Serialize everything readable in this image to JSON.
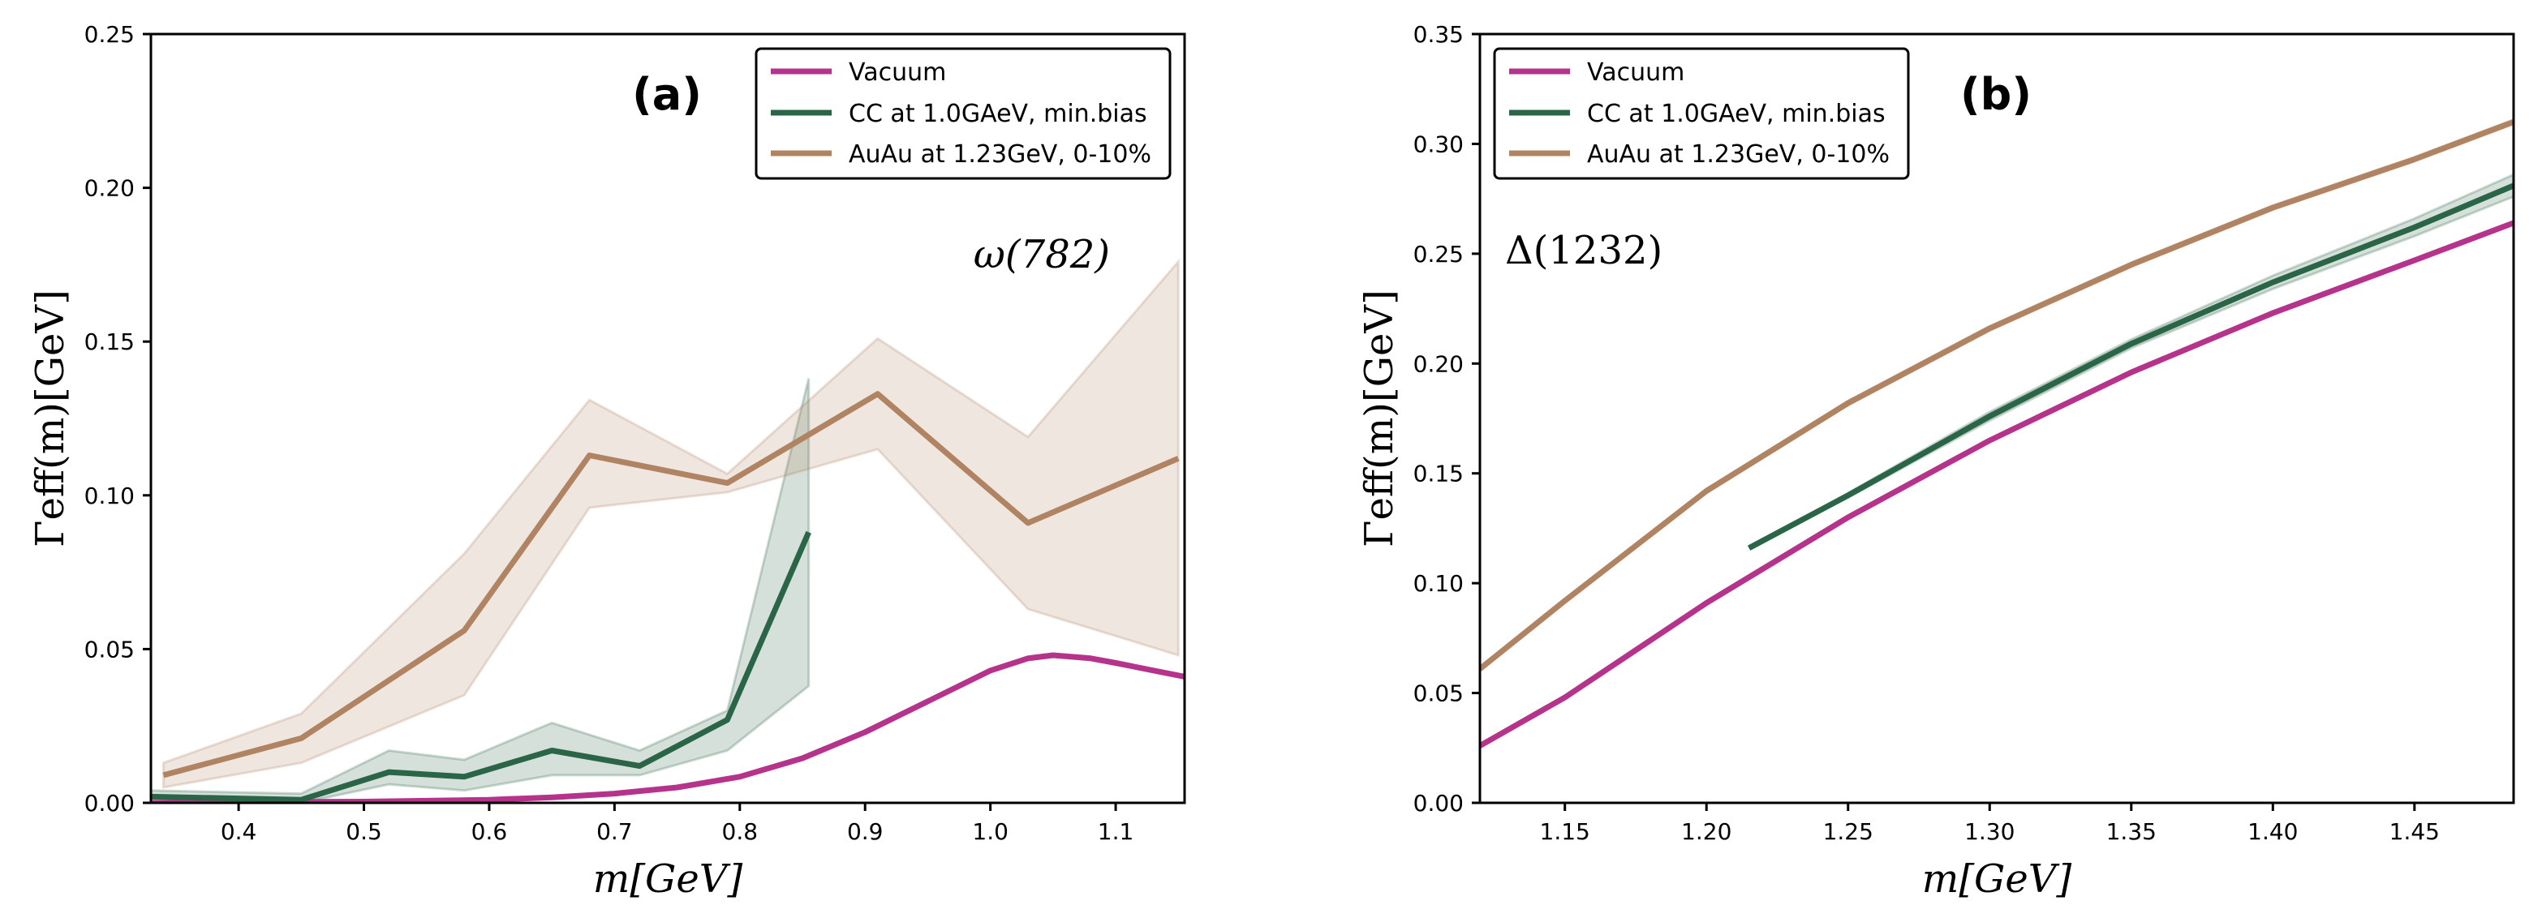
{
  "colors": {
    "vacuum": "#b5338a",
    "cc": "#2b6548",
    "auau": "#b08462"
  },
  "chart_data": [
    {
      "type": "line",
      "panel_label": "a",
      "annotation": "ω(782)",
      "xlabel": "m[GeV]",
      "ylabel": "Γeff(m)[GeV]",
      "xlim": [
        0.33,
        1.155
      ],
      "ylim": [
        0,
        0.25
      ],
      "xticks": [
        0.4,
        0.5,
        0.6,
        0.7,
        0.8,
        0.9,
        1.0,
        1.1
      ],
      "xtick_labels": [
        "0.4",
        "0.5",
        "0.6",
        "0.7",
        "0.8",
        "0.9",
        "1.0",
        "1.1"
      ],
      "yticks": [
        0.0,
        0.05,
        0.1,
        0.15,
        0.2,
        0.25
      ],
      "ytick_labels": [
        "0.00",
        "0.05",
        "0.10",
        "0.15",
        "0.20",
        "0.25"
      ],
      "legend_position": "top-right",
      "series": [
        {
          "name": "Vacuum",
          "color_key": "vacuum",
          "x": [
            0.33,
            0.4,
            0.5,
            0.6,
            0.65,
            0.7,
            0.75,
            0.8,
            0.85,
            0.9,
            0.95,
            1.0,
            1.03,
            1.05,
            1.08,
            1.1,
            1.155
          ],
          "y": [
            0.0,
            0.0002,
            0.0004,
            0.001,
            0.0018,
            0.003,
            0.005,
            0.0085,
            0.0145,
            0.023,
            0.033,
            0.043,
            0.047,
            0.048,
            0.047,
            0.0455,
            0.041
          ]
        },
        {
          "name": "CC at 1.0GAeV, min.bias",
          "color_key": "cc",
          "x": [
            0.33,
            0.45,
            0.52,
            0.58,
            0.65,
            0.72,
            0.79,
            0.855
          ],
          "y": [
            0.002,
            0.001,
            0.01,
            0.0085,
            0.017,
            0.012,
            0.027,
            0.088
          ],
          "band_low": [
            0.0,
            0.0,
            0.006,
            0.004,
            0.009,
            0.009,
            0.017,
            0.038
          ],
          "band_high": [
            0.004,
            0.003,
            0.017,
            0.014,
            0.026,
            0.017,
            0.03,
            0.138
          ]
        },
        {
          "name": "AuAu at 1.23GeV, 0-10%",
          "color_key": "auau",
          "x": [
            0.34,
            0.45,
            0.58,
            0.68,
            0.79,
            0.91,
            1.03,
            1.15
          ],
          "y": [
            0.009,
            0.021,
            0.056,
            0.113,
            0.104,
            0.133,
            0.091,
            0.112
          ],
          "band_low": [
            0.005,
            0.013,
            0.035,
            0.096,
            0.101,
            0.115,
            0.063,
            0.048
          ],
          "band_high": [
            0.013,
            0.029,
            0.081,
            0.131,
            0.107,
            0.151,
            0.119,
            0.176
          ]
        }
      ]
    },
    {
      "type": "line",
      "panel_label": "b",
      "annotation": "Δ(1232)",
      "xlabel": "m[GeV]",
      "ylabel": "Γeff(m)[GeV]",
      "xlim": [
        1.12,
        1.485
      ],
      "ylim": [
        0,
        0.35
      ],
      "xticks": [
        1.15,
        1.2,
        1.25,
        1.3,
        1.35,
        1.4,
        1.45
      ],
      "xtick_labels": [
        "1.15",
        "1.20",
        "1.25",
        "1.30",
        "1.35",
        "1.40",
        "1.45"
      ],
      "yticks": [
        0.0,
        0.05,
        0.1,
        0.15,
        0.2,
        0.25,
        0.3,
        0.35
      ],
      "ytick_labels": [
        "0.00",
        "0.05",
        "0.10",
        "0.15",
        "0.20",
        "0.25",
        "0.30",
        "0.35"
      ],
      "legend_position": "top-left",
      "series": [
        {
          "name": "Vacuum",
          "color_key": "vacuum",
          "x": [
            1.12,
            1.15,
            1.2,
            1.25,
            1.3,
            1.35,
            1.4,
            1.45,
            1.485
          ],
          "y": [
            0.026,
            0.048,
            0.091,
            0.13,
            0.165,
            0.196,
            0.223,
            0.247,
            0.264
          ]
        },
        {
          "name": "CC at 1.0GAeV, min.bias",
          "color_key": "cc",
          "x": [
            1.215,
            1.25,
            1.3,
            1.35,
            1.4,
            1.45,
            1.485
          ],
          "y": [
            0.116,
            0.14,
            0.176,
            0.209,
            0.237,
            0.262,
            0.281
          ],
          "band_low": [
            0.116,
            0.139,
            0.174,
            0.207,
            0.234,
            0.258,
            0.276
          ],
          "band_high": [
            0.116,
            0.141,
            0.178,
            0.211,
            0.24,
            0.266,
            0.286
          ]
        },
        {
          "name": "AuAu at 1.23GeV, 0-10%",
          "color_key": "auau",
          "x": [
            1.12,
            1.15,
            1.2,
            1.25,
            1.3,
            1.35,
            1.4,
            1.45,
            1.485
          ],
          "y": [
            0.061,
            0.092,
            0.142,
            0.182,
            0.216,
            0.245,
            0.271,
            0.293,
            0.31
          ],
          "band_low": [
            0.06,
            0.091,
            0.141,
            0.181,
            0.215,
            0.244,
            0.27,
            0.292,
            0.309
          ],
          "band_high": [
            0.062,
            0.093,
            0.143,
            0.183,
            0.217,
            0.246,
            0.272,
            0.294,
            0.311
          ]
        }
      ]
    }
  ]
}
